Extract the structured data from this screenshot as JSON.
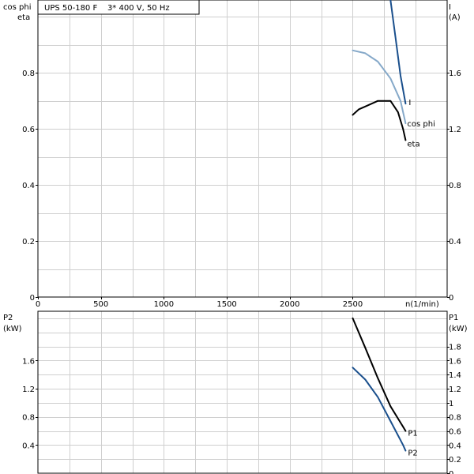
{
  "chart_data": [
    {
      "type": "line",
      "title": "UPS 50-180 F    3* 400 V, 50 Hz",
      "xlabel": "n(1/min)",
      "ylabel_left": [
        "cos phi",
        "eta"
      ],
      "ylabel_right": [
        "I",
        "(A)"
      ],
      "xlim": [
        0,
        3250
      ],
      "ylim_left": [
        0,
        1.06
      ],
      "ylim_right": [
        0,
        2.12
      ],
      "x_ticks": [
        "0",
        "500",
        "1000",
        "1500",
        "2000",
        "2500"
      ],
      "y_ticks_left": [
        "0",
        "0.2",
        "0.4",
        "0.6",
        "0.8"
      ],
      "y_ticks_right": [
        "0",
        "0.4",
        "0.8",
        "1.2",
        "1.6"
      ],
      "grid": true,
      "series": [
        {
          "name": "I",
          "axis": "right",
          "color": "#1a4f8c",
          "x": [
            2800,
            2840,
            2880,
            2920
          ],
          "y": [
            2.12,
            1.85,
            1.58,
            1.38
          ]
        },
        {
          "name": "cos phi",
          "axis": "left",
          "color": "#86a9c9",
          "x": [
            2500,
            2600,
            2700,
            2800,
            2880,
            2920
          ],
          "y": [
            0.88,
            0.87,
            0.84,
            0.78,
            0.7,
            0.62
          ]
        },
        {
          "name": "eta",
          "axis": "left",
          "color": "#000000",
          "x": [
            2500,
            2550,
            2600,
            2700,
            2800,
            2860,
            2900,
            2920
          ],
          "y": [
            0.65,
            0.67,
            0.68,
            0.7,
            0.7,
            0.66,
            0.6,
            0.56
          ]
        }
      ]
    },
    {
      "type": "line",
      "xlabel": "",
      "ylabel_left": [
        "P2",
        "(kW)"
      ],
      "ylabel_right": [
        "P1",
        "(kW)"
      ],
      "xlim": [
        0,
        3250
      ],
      "ylim_left": [
        0,
        2.3
      ],
      "ylim_right": [
        0,
        2.3
      ],
      "y_ticks_left": [
        "0.4",
        "0.8",
        "1.2",
        "1.6"
      ],
      "y_ticks_right": [
        "0",
        "0.2",
        "0.4",
        "0.6",
        "0.8",
        "1",
        "1.2",
        "1.4",
        "1.6",
        "1.8"
      ],
      "grid": true,
      "series": [
        {
          "name": "P1",
          "axis": "right",
          "color": "#000000",
          "x": [
            2500,
            2600,
            2700,
            2800,
            2900,
            2920
          ],
          "y": [
            2.2,
            1.78,
            1.35,
            0.95,
            0.66,
            0.6
          ]
        },
        {
          "name": "P2",
          "axis": "left",
          "color": "#1a4f8c",
          "x": [
            2500,
            2600,
            2700,
            2800,
            2900,
            2920
          ],
          "y": [
            1.5,
            1.33,
            1.08,
            0.74,
            0.4,
            0.32
          ]
        }
      ]
    }
  ]
}
